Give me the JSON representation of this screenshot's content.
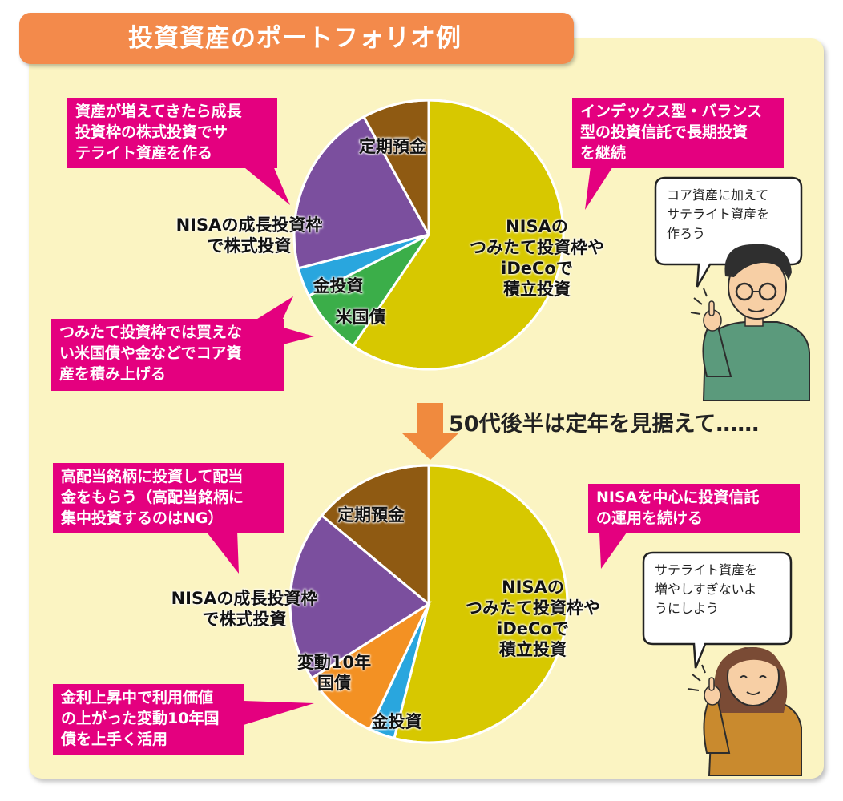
{
  "title": "投資資産のポートフォリオ例",
  "transition_text": "50代後半は定年を見据えて……",
  "colors": {
    "panel": "#fbf4c2",
    "title_bar": "#f38a4b",
    "callout": "#e4007f",
    "arrow": "#f08a3e",
    "nisa_tsumitate": "#d7c800",
    "fixed_deposit": "#8f5a12",
    "growth_stocks": "#7b4f9e",
    "gold": "#29a6de",
    "us_bonds": "#3bae49",
    "floating_jgb": "#f39123"
  },
  "chart_data": [
    {
      "type": "pie",
      "slices": [
        {
          "label": "NISAの\nつみたて投資枠や\niDeCoで\n積立投資",
          "value": 59.5,
          "color": "#d7c800"
        },
        {
          "label": "米国債",
          "value": 8,
          "color": "#3bae49"
        },
        {
          "label": "金投資",
          "value": 3.5,
          "color": "#29a6de"
        },
        {
          "label": "NISAの成長投資枠\nで株式投資",
          "value": 21,
          "color": "#7b4f9e"
        },
        {
          "label": "定期預金",
          "value": 8,
          "color": "#8f5a12"
        }
      ]
    },
    {
      "type": "pie",
      "slices": [
        {
          "label": "NISAの\nつみたて投資枠や\niDeCoで\n積立投資",
          "value": 54,
          "color": "#d7c800"
        },
        {
          "label": "金投資",
          "value": 3,
          "color": "#29a6de"
        },
        {
          "label": "変動10年\n国債",
          "value": 9,
          "color": "#f39123"
        },
        {
          "label": "NISAの成長投資枠\nで株式投資",
          "value": 20,
          "color": "#7b4f9e"
        },
        {
          "label": "定期預金",
          "value": 14,
          "color": "#8f5a12"
        }
      ]
    }
  ],
  "callouts": {
    "top_left": "資産が増えてきたら成長\n投資枠の株式投資でサ\nテライト資産を作る",
    "top_right": "インデックス型・バランス\n型の投資信託で長期投資\nを継続",
    "mid_left": "つみたて投資枠では買えな\nい米国債や金などでコア資\n産を積み上げる",
    "bottom_left_top": "高配当銘柄に投資して配当\n金をもらう（高配当銘柄に\n集中投資するのはNG）",
    "bottom_right": "NISAを中心に投資信託\nの運用を続ける",
    "bottom_left": "金利上昇中で利用価値\nの上がった変動10年国\n債を上手く活用"
  },
  "speech": {
    "man": "コア資産に加えて\nサテライト資産を\n作ろう",
    "woman": "サテライト資産を\n増やしすぎないよ\nうにしよう"
  }
}
